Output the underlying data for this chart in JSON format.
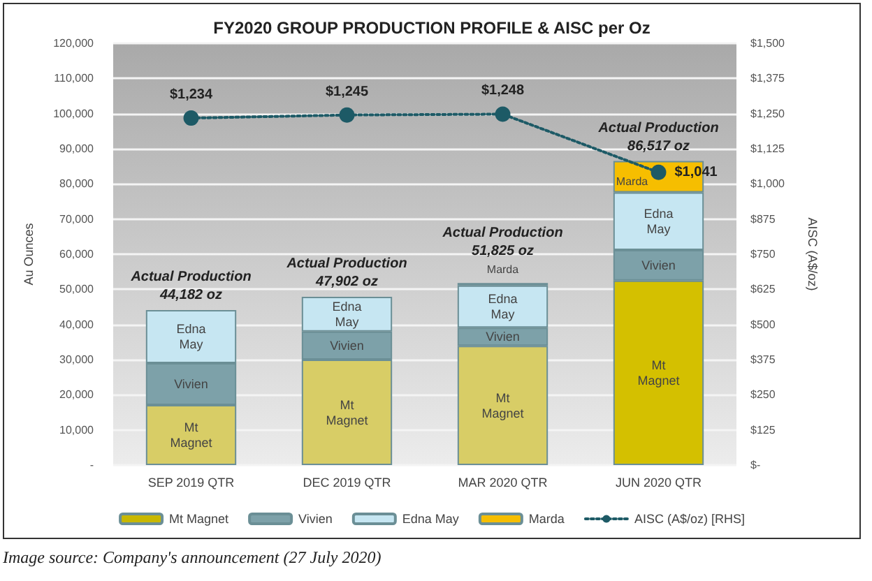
{
  "chart_data": {
    "type": "bar",
    "title": "FY2020 GROUP PRODUCTION PROFILE & AISC per Oz",
    "categories": [
      "SEP 2019 QTR",
      "DEC 2019 QTR",
      "MAR 2020 QTR",
      "JUN 2020 QTR"
    ],
    "stacked": true,
    "series": [
      {
        "name": "Mt Magnet",
        "color": "#c9b800",
        "colors": [
          "#d8cd66",
          "#d8cd66",
          "#d8cd66",
          "#d4c000"
        ],
        "values": [
          17100,
          30000,
          33900,
          52500
        ]
      },
      {
        "name": "Vivien",
        "color": "#7da1a9",
        "values": [
          11900,
          8000,
          5200,
          8700
        ]
      },
      {
        "name": "Edna May",
        "color": "#c6e6f2",
        "values": [
          15100,
          9900,
          12000,
          16400
        ]
      },
      {
        "name": "Marda",
        "color": "#f6be00",
        "values": [
          null,
          null,
          700,
          8900
        ]
      },
      {
        "name": "AISC (A$/oz) [RHS]",
        "type": "line",
        "axis": "y2",
        "color": "#1d5a66",
        "marker": "circle",
        "line_style": "dotted",
        "values": [
          1234,
          1245,
          1248,
          1041
        ],
        "value_labels": [
          "$1,234",
          "$1,245",
          "$1,248",
          "$1,041"
        ]
      }
    ],
    "ylabel": "Au Ounces",
    "y2label": "AISC (A$/oz)",
    "ylim": [
      0,
      120000
    ],
    "yticks": [
      {
        "value": 0,
        "label": "-"
      },
      {
        "value": 10000,
        "label": "10,000"
      },
      {
        "value": 20000,
        "label": "20,000"
      },
      {
        "value": 30000,
        "label": "30,000"
      },
      {
        "value": 40000,
        "label": "40,000"
      },
      {
        "value": 50000,
        "label": "50,000"
      },
      {
        "value": 60000,
        "label": "60,000"
      },
      {
        "value": 70000,
        "label": "70,000"
      },
      {
        "value": 80000,
        "label": "80,000"
      },
      {
        "value": 90000,
        "label": "90,000"
      },
      {
        "value": 100000,
        "label": "100,000"
      },
      {
        "value": 110000,
        "label": "110,000"
      },
      {
        "value": 120000,
        "label": "120,000"
      }
    ],
    "y2lim": [
      0,
      1500
    ],
    "y2ticks": [
      {
        "value": 0,
        "label": "$-"
      },
      {
        "value": 125,
        "label": "$125"
      },
      {
        "value": 250,
        "label": "$250"
      },
      {
        "value": 375,
        "label": "$375"
      },
      {
        "value": 500,
        "label": "$500"
      },
      {
        "value": 625,
        "label": "$625"
      },
      {
        "value": 750,
        "label": "$750"
      },
      {
        "value": 875,
        "label": "$875"
      },
      {
        "value": 1000,
        "label": "$1,000"
      },
      {
        "value": 1125,
        "label": "$1,125"
      },
      {
        "value": 1250,
        "label": "$1,250"
      },
      {
        "value": 1375,
        "label": "$1,375"
      },
      {
        "value": 1500,
        "label": "$1,500"
      }
    ],
    "grid": "y",
    "legend": "bottom",
    "annotations": [
      {
        "text": "Actual Production\n44,182 oz",
        "x": "SEP 2019 QTR",
        "y": 44182
      },
      {
        "text": "Actual Production\n47,902 oz",
        "x": "DEC 2019 QTR",
        "y": 47902
      },
      {
        "text": "Actual Production\n51,825 oz",
        "x": "MAR 2020 QTR",
        "y": 51825
      },
      {
        "text": "Actual Production\n86,517 oz",
        "x": "JUN 2020 QTR",
        "y": 86517
      },
      "Image source: Company's announcement (27 July 2020)"
    ]
  }
}
